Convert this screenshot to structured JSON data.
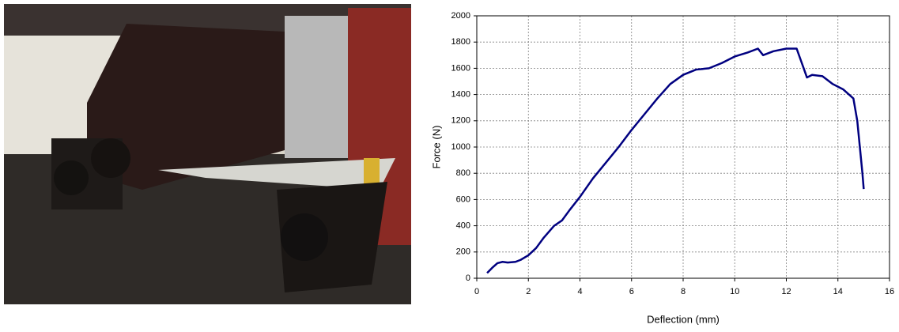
{
  "chart_data": {
    "type": "line",
    "x_label": "Deflection  (mm)",
    "y_label": "Force (N)",
    "x": [
      0.4,
      0.6,
      0.8,
      1.0,
      1.2,
      1.5,
      1.7,
      2.0,
      2.3,
      2.6,
      3.0,
      3.3,
      3.6,
      4.0,
      4.5,
      5.0,
      5.5,
      6.0,
      6.5,
      7.0,
      7.5,
      8.0,
      8.5,
      9.0,
      9.5,
      10.0,
      10.5,
      10.9,
      11.1,
      11.5,
      12.0,
      12.4,
      12.6,
      12.8,
      13.0,
      13.4,
      13.8,
      14.2,
      14.6,
      14.75,
      14.85,
      14.95,
      15.0
    ],
    "series": [
      {
        "color": "#000080",
        "values": [
          40,
          80,
          115,
          125,
          120,
          125,
          140,
          175,
          230,
          310,
          400,
          440,
          520,
          620,
          760,
          880,
          1000,
          1130,
          1250,
          1370,
          1480,
          1550,
          1590,
          1600,
          1640,
          1690,
          1720,
          1750,
          1700,
          1730,
          1750,
          1750,
          1640,
          1530,
          1550,
          1540,
          1480,
          1440,
          1370,
          1200,
          1000,
          800,
          680
        ]
      }
    ],
    "xlim": [
      0,
      16
    ],
    "xticks": [
      0,
      2,
      4,
      6,
      8,
      10,
      12,
      14,
      16
    ],
    "ylim": [
      0,
      2000
    ],
    "yticks": [
      0,
      200,
      400,
      600,
      800,
      1000,
      1200,
      1400,
      1600,
      1800,
      2000
    ],
    "grid": true
  }
}
